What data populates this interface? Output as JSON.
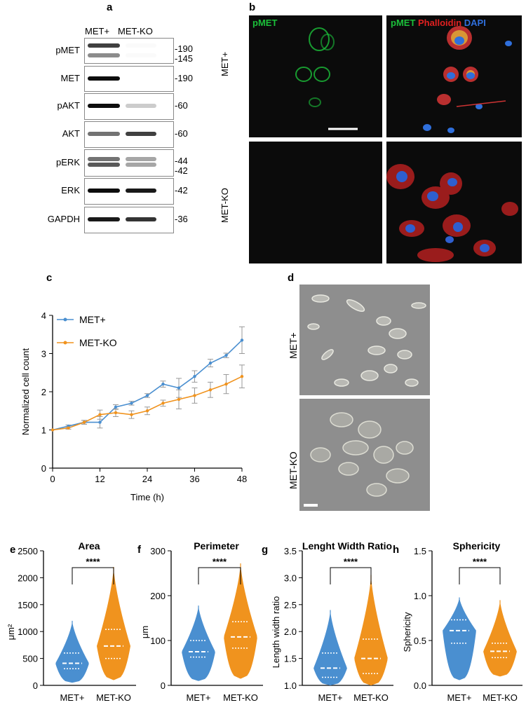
{
  "panel_letters": {
    "a": "a",
    "b": "b",
    "c": "c",
    "d": "d",
    "e": "e",
    "f": "f",
    "g": "g",
    "h": "h"
  },
  "western_blot": {
    "columns": [
      "MET+",
      "MET-KO"
    ],
    "rows": [
      {
        "label": "pMET",
        "mw": [
          "-190",
          "-145"
        ]
      },
      {
        "label": "MET",
        "mw": [
          "-190"
        ]
      },
      {
        "label": "pAKT",
        "mw": [
          "-60"
        ]
      },
      {
        "label": "AKT",
        "mw": [
          "-60"
        ]
      },
      {
        "label": "pERK",
        "mw": [
          "-44",
          "-42"
        ]
      },
      {
        "label": "ERK",
        "mw": [
          "-42"
        ]
      },
      {
        "label": "GAPDH",
        "mw": [
          "-36"
        ]
      }
    ]
  },
  "microscopy": {
    "left_title": "pMET",
    "right_title": {
      "pmet": "pMET",
      "phalloidin": "Phalloidin",
      "dapi": "DAPI"
    },
    "rows": [
      "MET+",
      "MET-KO"
    ]
  },
  "phase_contrast": {
    "rows": [
      "MET+",
      "MET-KO"
    ]
  },
  "colors": {
    "met_plus": "#4a8fd0",
    "met_ko": "#f0931e",
    "pmet": "#1bbf3a",
    "phalloidin": "#e02020",
    "dapi": "#2f6fdc",
    "grey": "#999999"
  },
  "chart_data": [
    {
      "type": "line",
      "xlabel": "Time (h)",
      "ylabel": "Normalized cell count",
      "xlim": [
        0,
        48
      ],
      "ylim": [
        0,
        4
      ],
      "xticks": [
        0,
        12,
        24,
        36,
        48
      ],
      "yticks": [
        0,
        1,
        2,
        3,
        4
      ],
      "x": [
        0,
        4,
        8,
        12,
        16,
        20,
        24,
        28,
        32,
        36,
        40,
        44,
        48
      ],
      "legend_position": "top-left",
      "series": [
        {
          "name": "MET+",
          "values": [
            1.0,
            1.1,
            1.2,
            1.2,
            1.6,
            1.7,
            1.9,
            2.2,
            2.1,
            2.4,
            2.75,
            2.95,
            3.35
          ],
          "error": [
            0,
            0.03,
            0.05,
            0.15,
            0.06,
            0.05,
            0.05,
            0.08,
            0.25,
            0.15,
            0.1,
            0.06,
            0.35
          ]
        },
        {
          "name": "MET-KO",
          "values": [
            1.0,
            1.05,
            1.2,
            1.4,
            1.45,
            1.4,
            1.5,
            1.7,
            1.8,
            1.9,
            2.05,
            2.2,
            2.4
          ],
          "error": [
            0,
            0.03,
            0.05,
            0.12,
            0.1,
            0.1,
            0.1,
            0.08,
            0.25,
            0.2,
            0.2,
            0.25,
            0.3
          ]
        }
      ]
    },
    {
      "type": "violin",
      "title": "Area",
      "ylabel": "μm²",
      "ylim": [
        0,
        2500
      ],
      "yticks": [
        0,
        500,
        1000,
        1500,
        2000,
        2500
      ],
      "categories": [
        "MET+",
        "MET-KO"
      ],
      "significance": "****",
      "groups": [
        {
          "name": "MET+",
          "min": 50,
          "max": 1200,
          "q1": 310,
          "median": 410,
          "q3": 600
        },
        {
          "name": "MET-KO",
          "min": 100,
          "max": 2200,
          "q1": 500,
          "median": 730,
          "q3": 1040
        }
      ]
    },
    {
      "type": "violin",
      "title": "Perimeter",
      "ylabel": "μm",
      "ylim": [
        0,
        300
      ],
      "yticks": [
        0,
        100,
        200,
        300
      ],
      "categories": [
        "MET+",
        "MET-KO"
      ],
      "significance": "****",
      "groups": [
        {
          "name": "MET+",
          "min": 10,
          "max": 178,
          "q1": 63,
          "median": 75,
          "q3": 100
        },
        {
          "name": "MET-KO",
          "min": 15,
          "max": 272,
          "q1": 83,
          "median": 108,
          "q3": 142
        }
      ]
    },
    {
      "type": "violin",
      "title": "Lenght Width Ratio",
      "ylabel": "Length width ratio",
      "ylim": [
        1.0,
        3.5
      ],
      "yticks": [
        1.0,
        1.5,
        2.0,
        2.5,
        3.0,
        3.5
      ],
      "categories": [
        "MET+",
        "MET-KO"
      ],
      "significance": "****",
      "groups": [
        {
          "name": "MET+",
          "min": 1.0,
          "max": 2.4,
          "q1": 1.15,
          "median": 1.32,
          "q3": 1.6
        },
        {
          "name": "MET-KO",
          "min": 1.0,
          "max": 3.05,
          "q1": 1.22,
          "median": 1.5,
          "q3": 1.86
        }
      ]
    },
    {
      "type": "violin",
      "title": "Sphericity",
      "ylabel": "Sphericity",
      "ylim": [
        0.0,
        1.5
      ],
      "yticks": [
        0.0,
        0.5,
        1.0,
        1.5
      ],
      "categories": [
        "MET+",
        "MET-KO"
      ],
      "significance": "****",
      "groups": [
        {
          "name": "MET+",
          "min": 0.06,
          "max": 0.98,
          "q1": 0.47,
          "median": 0.61,
          "q3": 0.73
        },
        {
          "name": "MET-KO",
          "min": 0.1,
          "max": 0.95,
          "q1": 0.31,
          "median": 0.38,
          "q3": 0.47
        }
      ]
    }
  ]
}
